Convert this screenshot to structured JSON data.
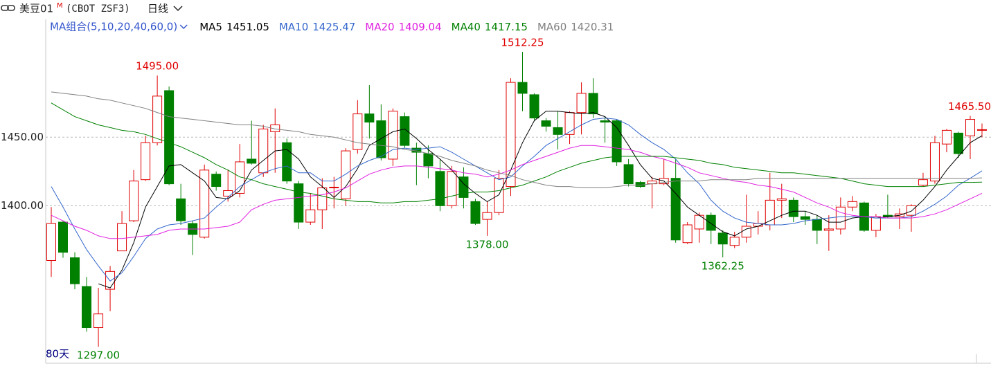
{
  "header": {
    "symbol": "美豆01",
    "symbol_sup": "M",
    "code": "(CBOT ZSF3)",
    "period": "日线"
  },
  "chart_data": {
    "type": "candlestick",
    "ma_label": "MA组合(5,10,20,40,60,0)",
    "days_label": "80天",
    "ylim": [
      1285,
      1536
    ],
    "yticks": [
      {
        "value": 1400,
        "label": "1400.00"
      },
      {
        "value": 1450,
        "label": "1450.00"
      }
    ],
    "grid": true,
    "up_color": "#e00000",
    "down_color": "#008000",
    "open": [
      1360,
      1388,
      1362,
      1341,
      1311,
      1339,
      1367,
      1389,
      1419,
      1446,
      1484,
      1405,
      1387,
      1377,
      1423,
      1407,
      1409,
      1434,
      1424,
      1454,
      1446,
      1416,
      1388,
      1397,
      1413,
      1405,
      1441,
      1467,
      1462,
      1434,
      1465,
      1442,
      1438,
      1425,
      1400,
      1421,
      1403,
      1390,
      1395,
      1414,
      1490,
      1481,
      1462,
      1457,
      1452,
      1468,
      1482,
      1462,
      1462,
      1430,
      1417,
      1416,
      1416,
      1420,
      1373,
      1383,
      1393,
      1380,
      1371,
      1377,
      1385,
      1386,
      1404,
      1404,
      1392,
      1390,
      1382,
      1383,
      1399,
      1402,
      1382,
      1393,
      1392,
      1393,
      1415,
      1418,
      1445,
      1453,
      1451,
      1455
    ],
    "high": [
      1399,
      1389,
      1366,
      1348,
      1340,
      1356,
      1396,
      1426,
      1451,
      1495,
      1487,
      1416,
      1389,
      1430,
      1425,
      1426,
      1445,
      1462,
      1459,
      1471,
      1449,
      1418,
      1409,
      1420,
      1421,
      1442,
      1477,
      1488,
      1474,
      1471,
      1468,
      1446,
      1444,
      1434,
      1429,
      1428,
      1405,
      1403,
      1426,
      1493,
      1512.25,
      1482,
      1464,
      1469,
      1469,
      1490,
      1493,
      1465,
      1463,
      1434,
      1418,
      1421,
      1434,
      1434,
      1388,
      1395,
      1395,
      1382,
      1381,
      1408,
      1396,
      1424,
      1416,
      1406,
      1396,
      1393,
      1393,
      1406,
      1407,
      1403,
      1394,
      1408,
      1398,
      1401,
      1424,
      1451,
      1456,
      1454,
      1465.5,
      1460
    ],
    "low": [
      1348,
      1362,
      1339,
      1308,
      1297,
      1323,
      1367,
      1388,
      1418,
      1444,
      1415,
      1386,
      1364,
      1376,
      1411,
      1403,
      1406,
      1430,
      1421,
      1424,
      1416,
      1383,
      1386,
      1383,
      1398,
      1400,
      1438,
      1449,
      1433,
      1429,
      1442,
      1415,
      1420,
      1396,
      1398,
      1398,
      1386,
      1378,
      1393,
      1407,
      1469,
      1462,
      1454,
      1441,
      1445,
      1452,
      1464,
      1446,
      1429,
      1414,
      1413,
      1398,
      1415,
      1373,
      1372,
      1373,
      1372,
      1362.25,
      1369,
      1373,
      1379,
      1382,
      1391,
      1388,
      1386,
      1372,
      1367,
      1379,
      1396,
      1381,
      1377,
      1391,
      1383,
      1381,
      1414,
      1416,
      1439,
      1435,
      1434,
      1450
    ],
    "close": [
      1387,
      1366,
      1343,
      1311,
      1321,
      1352,
      1387,
      1418,
      1446,
      1480,
      1416,
      1389,
      1379,
      1426,
      1414,
      1411,
      1432,
      1431,
      1456,
      1459,
      1418,
      1388,
      1397,
      1413,
      1413.5,
      1440,
      1467,
      1461,
      1435,
      1469,
      1444,
      1439,
      1429,
      1400,
      1425,
      1406,
      1387,
      1395,
      1420,
      1490,
      1482,
      1464,
      1458,
      1452,
      1468,
      1482,
      1467,
      1461,
      1432,
      1416,
      1414,
      1418,
      1420,
      1375,
      1386,
      1393,
      1382,
      1372,
      1377,
      1385,
      1387,
      1404,
      1405,
      1392,
      1390,
      1382,
      1383,
      1399,
      1403,
      1382,
      1392,
      1392,
      1394,
      1400,
      1419,
      1446,
      1455,
      1438,
      1463,
      1455.5
    ],
    "series": [
      {
        "name": "MA5",
        "legend_value": "1451.05",
        "color": "#000000",
        "values": [
          null,
          null,
          null,
          null,
          1343,
          1340,
          1353,
          1373,
          1399,
          1414,
          1429,
          1430,
          1424,
          1418,
          1406,
          1405,
          1411,
          1426,
          1433,
          1440,
          1441,
          1434,
          1421,
          1414,
          1406,
          1414,
          1427,
          1444,
          1449,
          1454,
          1456,
          1449,
          1441,
          1434,
          1426,
          1416,
          1409,
          1403,
          1408,
          1426,
          1446,
          1462,
          1469,
          1469,
          1468,
          1467,
          1468,
          1465,
          1457,
          1444,
          1430,
          1420,
          1418,
          1409,
          1399,
          1393,
          1387,
          1381,
          1378,
          1383,
          1385,
          1389,
          1393,
          1396,
          1396,
          1393,
          1388,
          1388,
          1391,
          1392,
          1391,
          1392,
          1393,
          1396,
          1404,
          1414,
          1426,
          1436,
          1446,
          1451.05
        ]
      },
      {
        "name": "MA10",
        "legend_value": "1425.47",
        "color": "#3366cc",
        "values": [
          1414,
          1399,
          1383,
          1368,
          1356,
          1345,
          1351,
          1363,
          1376,
          1383,
          1386,
          1387,
          1389,
          1391,
          1399,
          1406,
          1414,
          1419,
          1424,
          1427,
          1429,
          1424,
          1424,
          1418,
          1418,
          1423,
          1429,
          1433,
          1436,
          1441,
          1442,
          1441,
          1442,
          1443,
          1439,
          1434,
          1429,
          1424,
          1419,
          1421,
          1429,
          1436,
          1444,
          1449,
          1454,
          1459,
          1463,
          1464,
          1463,
          1459,
          1452,
          1446,
          1441,
          1434,
          1424,
          1416,
          1404,
          1396,
          1391,
          1388,
          1387,
          1386,
          1386,
          1387,
          1389,
          1390,
          1391,
          1392,
          1392,
          1392,
          1391,
          1391,
          1391,
          1392,
          1396,
          1401,
          1407,
          1415,
          1420,
          1425.47
        ]
      },
      {
        "name": "MA20",
        "legend_value": "1409.04",
        "color": "#e020e0",
        "values": [
          1393,
          1389,
          1385,
          1382,
          1378,
          1376,
          1376,
          1377,
          1378,
          1379,
          1382,
          1383,
          1383,
          1383,
          1384,
          1385,
          1388,
          1397,
          1401,
          1404,
          1405,
          1406,
          1407,
          1408,
          1410,
          1413,
          1418,
          1423,
          1426,
          1428,
          1429,
          1429,
          1428,
          1427,
          1426,
          1424,
          1423,
          1421,
          1423,
          1426,
          1430,
          1433,
          1436,
          1439,
          1442,
          1444,
          1444,
          1443,
          1442,
          1441,
          1439,
          1436,
          1434,
          1431,
          1428,
          1424,
          1422,
          1420,
          1418,
          1417,
          1415,
          1414,
          1412,
          1410,
          1406,
          1402,
          1399,
          1395,
          1393,
          1392,
          1392,
          1391,
          1391,
          1391,
          1392,
          1394,
          1397,
          1401,
          1405,
          1409.04
        ]
      },
      {
        "name": "MA40",
        "legend_value": "1417.15",
        "color": "#008000",
        "values": [
          1475,
          1470,
          1465,
          1462,
          1459,
          1457,
          1455,
          1454,
          1452,
          1449,
          1446,
          1443,
          1439,
          1435,
          1430,
          1426,
          1421,
          1419,
          1416,
          1414,
          1412,
          1410,
          1409,
          1407,
          1405,
          1404,
          1403,
          1403,
          1402,
          1402,
          1403,
          1403,
          1404,
          1405,
          1407,
          1409,
          1410,
          1410,
          1411,
          1413,
          1415,
          1418,
          1421,
          1425,
          1428,
          1431,
          1433,
          1435,
          1436,
          1436,
          1436,
          1436,
          1436,
          1435,
          1434,
          1433,
          1431,
          1430,
          1428,
          1427,
          1426,
          1425,
          1424,
          1424,
          1423,
          1422,
          1421,
          1420,
          1418,
          1416,
          1415,
          1414,
          1414,
          1414,
          1414,
          1415,
          1416,
          1417,
          1417,
          1417.15
        ]
      },
      {
        "name": "MA60",
        "legend_value": "1420.31",
        "color": "#808080",
        "values": [
          1483,
          1482,
          1481,
          1480,
          1478,
          1477,
          1475,
          1473,
          1471,
          1468,
          1465,
          1464,
          1463,
          1462,
          1461,
          1460,
          1459,
          1459,
          1458,
          1456,
          1455,
          1454,
          1452,
          1451,
          1450,
          1448,
          1446,
          1445,
          1444,
          1443,
          1441,
          1440,
          1438,
          1436,
          1433,
          1431,
          1429,
          1426,
          1424,
          1422,
          1419,
          1417,
          1415,
          1414,
          1414,
          1413,
          1413,
          1413,
          1414,
          1415,
          1415,
          1416,
          1417,
          1418,
          1418,
          1418,
          1419,
          1419,
          1419,
          1419,
          1420,
          1420,
          1420,
          1420,
          1420,
          1420,
          1420,
          1420,
          1420,
          1420,
          1420,
          1420,
          1420,
          1420,
          1420,
          1420,
          1420,
          1420,
          1420,
          1420.31
        ]
      }
    ],
    "annotations": [
      {
        "label": "1495.00",
        "value": 1495,
        "color": "#e00000"
      },
      {
        "label": "1512.25",
        "value": 1512.25,
        "color": "#e00000"
      },
      {
        "label": "1465.50",
        "value": 1465.5,
        "color": "#e00000"
      },
      {
        "label": "1378.00",
        "value": 1378,
        "color": "#008000"
      },
      {
        "label": "1362.25",
        "value": 1362.25,
        "color": "#008000"
      },
      {
        "label": "1297.00",
        "value": 1297,
        "color": "#008000"
      }
    ]
  }
}
